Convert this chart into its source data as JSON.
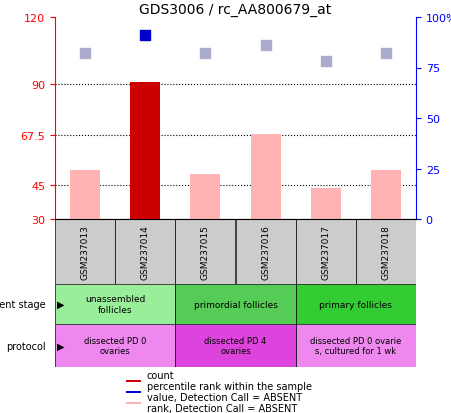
{
  "title": "GDS3006 / rc_AA800679_at",
  "samples": [
    "GSM237013",
    "GSM237014",
    "GSM237015",
    "GSM237016",
    "GSM237017",
    "GSM237018"
  ],
  "bar_values": [
    52,
    91,
    50,
    68,
    44,
    52
  ],
  "bar_colors": [
    "#ffb3b3",
    "#cc0000",
    "#ffb3b3",
    "#ffb3b3",
    "#ffb3b3",
    "#ffb3b3"
  ],
  "rank_values": [
    82,
    91,
    82,
    86,
    78,
    82
  ],
  "rank_colors": [
    "#aaaacc",
    "#0000cc",
    "#aaaacc",
    "#aaaacc",
    "#aaaacc",
    "#aaaacc"
  ],
  "ylim_left": [
    30,
    120
  ],
  "ylim_right": [
    0,
    100
  ],
  "yticks_left": [
    30,
    45,
    67.5,
    90,
    120
  ],
  "ytick_labels_left": [
    "30",
    "45",
    "67.5",
    "90",
    "120"
  ],
  "yticks_right": [
    0,
    25,
    50,
    75,
    100
  ],
  "ytick_labels_right": [
    "0",
    "25",
    "50",
    "75",
    "100%"
  ],
  "hlines": [
    45,
    67.5,
    90
  ],
  "dev_groups": [
    {
      "label": "unassembled\nfollicles",
      "start": 0,
      "end": 2,
      "color": "#99ee99"
    },
    {
      "label": "primordial follicles",
      "start": 2,
      "end": 4,
      "color": "#55cc55"
    },
    {
      "label": "primary follicles",
      "start": 4,
      "end": 6,
      "color": "#33cc33"
    }
  ],
  "prot_groups": [
    {
      "label": "dissected PD 0\novaries",
      "start": 0,
      "end": 2,
      "color": "#ee88ee"
    },
    {
      "label": "dissected PD 4\novaries",
      "start": 2,
      "end": 4,
      "color": "#dd44dd"
    },
    {
      "label": "dissected PD 0 ovarie\ns, cultured for 1 wk",
      "start": 4,
      "end": 6,
      "color": "#ee88ee"
    }
  ],
  "legend_items": [
    {
      "color": "#cc0000",
      "label": "count"
    },
    {
      "color": "#0000cc",
      "label": "percentile rank within the sample"
    },
    {
      "color": "#ffb3b3",
      "label": "value, Detection Call = ABSENT"
    },
    {
      "color": "#aaaacc",
      "label": "rank, Detection Call = ABSENT"
    }
  ]
}
